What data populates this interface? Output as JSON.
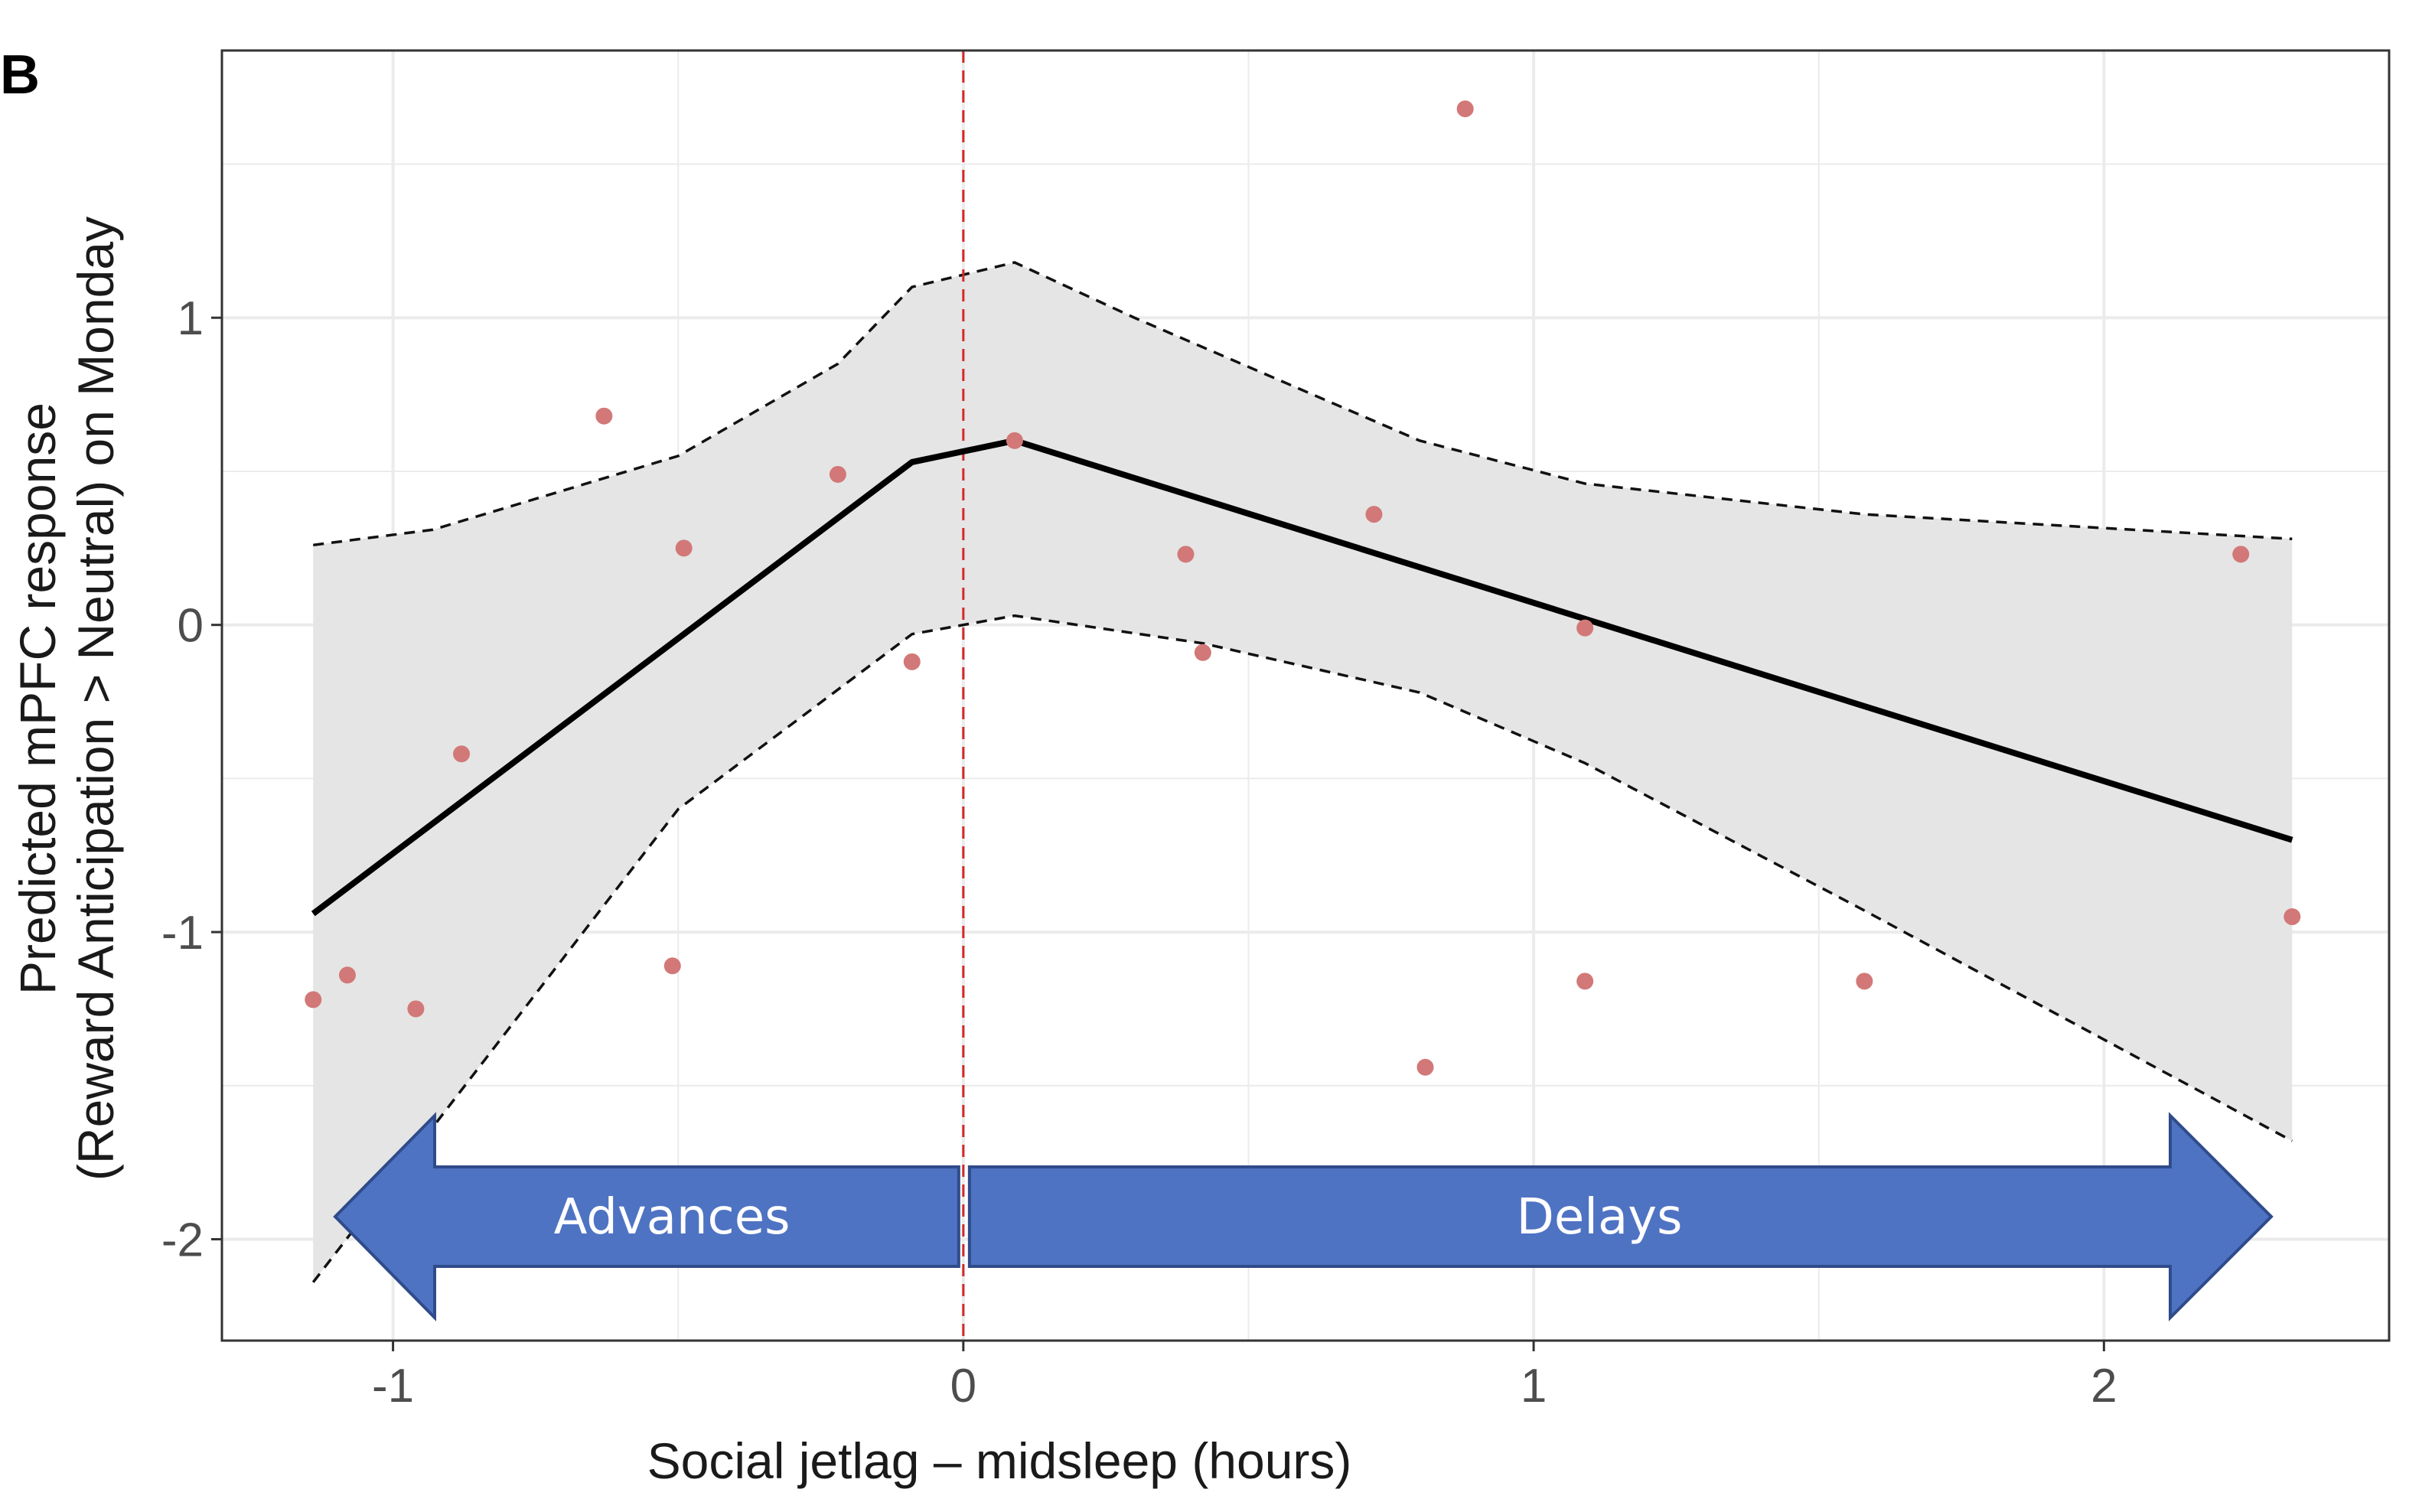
{
  "panel_label": "B",
  "chart_data": {
    "type": "scatter",
    "xlabel": "Social jetlag – midsleep (hours)",
    "ylabel_line1": "Predicted mPFC response",
    "ylabel_line2": "(Reward Anticipation > Neutral) on Monday",
    "xlim": [
      -1.3,
      2.5
    ],
    "ylim": [
      -2.33,
      1.87
    ],
    "x_ticks": [
      -1,
      0,
      1,
      2
    ],
    "x_tick_labels": [
      "-1",
      "0",
      "1",
      "2"
    ],
    "y_ticks": [
      -2,
      -1,
      0,
      1
    ],
    "y_tick_labels": [
      "-2",
      "-1",
      "0",
      "1"
    ],
    "grid": true,
    "vline": {
      "x": 0,
      "color": "#d62728",
      "style": "dashed"
    },
    "points": [
      {
        "x": -1.14,
        "y": -1.22
      },
      {
        "x": -1.08,
        "y": -1.14
      },
      {
        "x": -0.96,
        "y": -1.25
      },
      {
        "x": -0.88,
        "y": -0.42
      },
      {
        "x": -0.63,
        "y": 0.68
      },
      {
        "x": -0.51,
        "y": -1.11
      },
      {
        "x": -0.49,
        "y": 0.25
      },
      {
        "x": -0.22,
        "y": 0.49
      },
      {
        "x": -0.09,
        "y": -0.12
      },
      {
        "x": 0.09,
        "y": 0.6
      },
      {
        "x": 0.39,
        "y": 0.23
      },
      {
        "x": 0.42,
        "y": -0.09
      },
      {
        "x": 0.72,
        "y": 0.36
      },
      {
        "x": 0.81,
        "y": -1.44
      },
      {
        "x": 0.88,
        "y": 1.68
      },
      {
        "x": 1.09,
        "y": -0.01
      },
      {
        "x": 1.09,
        "y": -1.16
      },
      {
        "x": 1.58,
        "y": -1.16
      },
      {
        "x": 2.24,
        "y": 0.23
      },
      {
        "x": 2.33,
        "y": -0.95
      }
    ],
    "fit_line": [
      {
        "x": -1.14,
        "y": -0.94
      },
      {
        "x": -0.09,
        "y": 0.53
      },
      {
        "x": 0.09,
        "y": 0.6
      },
      {
        "x": 2.33,
        "y": -0.7
      }
    ],
    "ci_upper": [
      {
        "x": -1.14,
        "y": 0.26
      },
      {
        "x": -0.93,
        "y": 0.31
      },
      {
        "x": -0.5,
        "y": 0.55
      },
      {
        "x": -0.22,
        "y": 0.85
      },
      {
        "x": -0.09,
        "y": 1.1
      },
      {
        "x": 0.09,
        "y": 1.18
      },
      {
        "x": 0.3,
        "y": 1.0
      },
      {
        "x": 0.8,
        "y": 0.6
      },
      {
        "x": 1.09,
        "y": 0.46
      },
      {
        "x": 1.58,
        "y": 0.36
      },
      {
        "x": 2.33,
        "y": 0.28
      }
    ],
    "ci_lower": [
      {
        "x": -1.14,
        "y": -2.14
      },
      {
        "x": -0.5,
        "y": -0.6
      },
      {
        "x": -0.09,
        "y": -0.03
      },
      {
        "x": 0.09,
        "y": 0.03
      },
      {
        "x": 0.42,
        "y": -0.06
      },
      {
        "x": 0.8,
        "y": -0.22
      },
      {
        "x": 1.09,
        "y": -0.45
      },
      {
        "x": 1.58,
        "y": -0.93
      },
      {
        "x": 2.33,
        "y": -1.68
      }
    ],
    "colors": {
      "points": "#d27878",
      "fit": "#000000",
      "ribbon": "#e5e5e5",
      "arrows": "#4f73c3",
      "arrow_border": "#2f4b8a",
      "grid": "#ebebeb"
    },
    "annotations": {
      "left_arrow": "Advances",
      "right_arrow": "Delays"
    }
  }
}
